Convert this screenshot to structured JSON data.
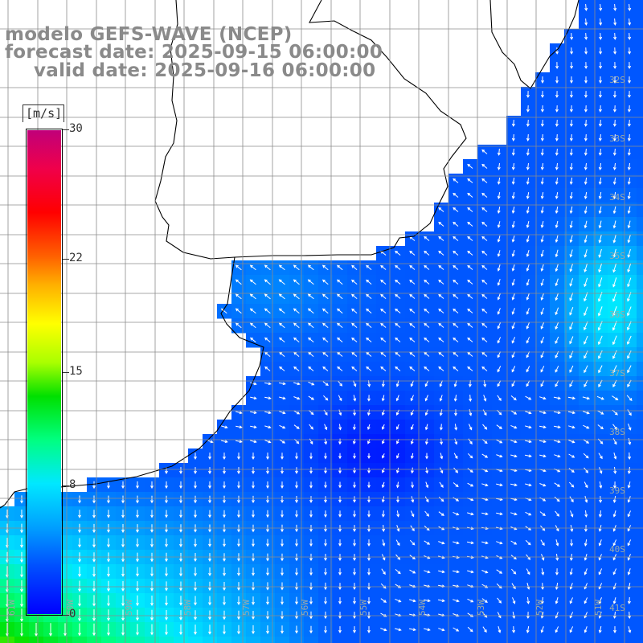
{
  "header": {
    "model": "modelo GEFS-WAVE (NCEP)",
    "forecast": "forecast date: 2025-09-15 06:00:00",
    "valid": "valid date: 2025-09-16 06:00:00"
  },
  "colorbar": {
    "unit": "[m/s]",
    "ticks": [
      "30",
      "22",
      "15",
      "8",
      "0"
    ],
    "tick_values": [
      30,
      22,
      15,
      8,
      0
    ],
    "max": 30,
    "min": 0
  },
  "grid": {
    "lat_labels": [
      "32S",
      "33S",
      "34S",
      "35S",
      "36S",
      "37S",
      "38S",
      "39S",
      "40S",
      "41S"
    ],
    "lon_labels": [
      "61W",
      "60W",
      "59W",
      "58W",
      "57W",
      "56W",
      "55W",
      "54W",
      "53W",
      "52W",
      "51W"
    ]
  },
  "colors": {
    "land": "#ffffff",
    "coast": "#000000",
    "grid": "#8c8c8c",
    "arrow": "#ffffff",
    "header_text": "#8a8a8a"
  }
}
